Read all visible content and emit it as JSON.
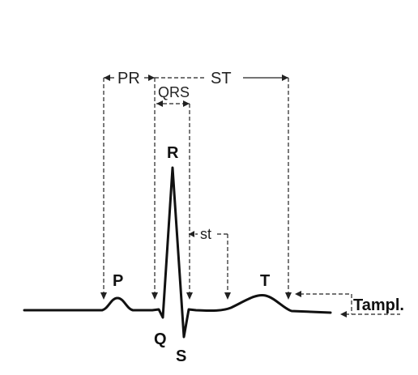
{
  "labels": {
    "pr": "PR",
    "st_interval": "ST",
    "qrs": "QRS",
    "st_segment": "st",
    "p": "P",
    "q": "Q",
    "r": "R",
    "s": "S",
    "t": "T",
    "amplitude": "Tampl."
  },
  "colors": {
    "line": "#111111",
    "background": "#ffffff"
  }
}
